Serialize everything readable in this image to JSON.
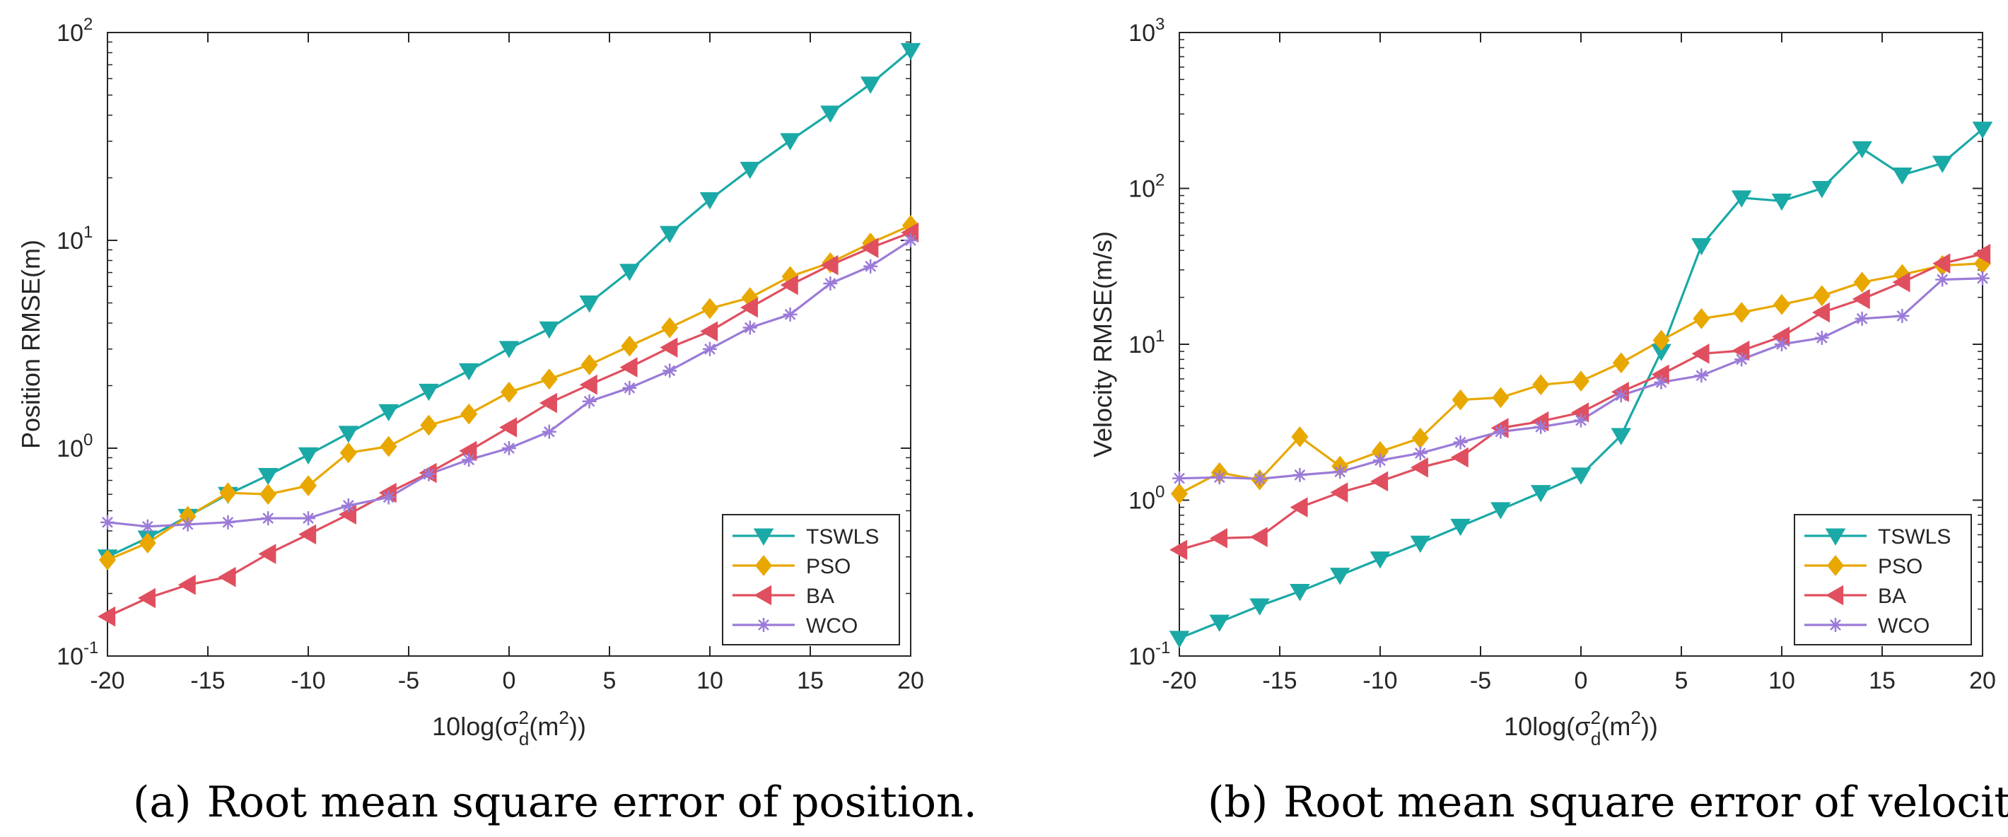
{
  "colors": {
    "TSWLS": "#1aa9a6",
    "PSO": "#e8a800",
    "BA": "#e04f5f",
    "WCO": "#9b7bd8"
  },
  "chart_data": [
    {
      "type": "line",
      "yscale": "log",
      "title": "",
      "xlabel_prefix": "10log(σ",
      "xlabel_sub": "d",
      "xlabel_sup": "2",
      "xlabel_mid": "(m",
      "xlabel_sup2": "2",
      "xlabel_suffix": "))",
      "ylabel": "Position RMSE(m)",
      "xlim": [
        -20,
        20
      ],
      "ylim": [
        0.1,
        100
      ],
      "xticks": [
        "-20",
        "-15",
        "-10",
        "-5",
        "0",
        "5",
        "10",
        "15",
        "20"
      ],
      "ytick_base": "10",
      "yticks": [
        {
          "exp": "-1",
          "value": 0.1
        },
        {
          "exp": "0",
          "value": 1
        },
        {
          "exp": "1",
          "value": 10
        },
        {
          "exp": "2",
          "value": 100
        }
      ],
      "legend_location": "bottom-right",
      "x": [
        -20,
        -18,
        -16,
        -14,
        -12,
        -10,
        -8,
        -6,
        -4,
        -2,
        0,
        2,
        4,
        6,
        8,
        10,
        12,
        14,
        16,
        18,
        20
      ],
      "series": [
        {
          "name": "TSWLS",
          "marker": "triangle-down",
          "values": [
            0.3,
            0.37,
            0.47,
            0.6,
            0.74,
            0.93,
            1.18,
            1.5,
            1.88,
            2.36,
            3.02,
            3.75,
            5.0,
            7.1,
            10.8,
            15.7,
            22.0,
            30.2,
            41.0,
            56.5,
            82.0
          ]
        },
        {
          "name": "PSO",
          "marker": "diamond",
          "values": [
            0.29,
            0.35,
            0.47,
            0.61,
            0.6,
            0.66,
            0.95,
            1.02,
            1.29,
            1.46,
            1.86,
            2.15,
            2.52,
            3.1,
            3.8,
            4.7,
            5.3,
            6.7,
            7.8,
            9.7,
            11.8
          ]
        },
        {
          "name": "BA",
          "marker": "triangle-left",
          "values": [
            0.155,
            0.19,
            0.22,
            0.24,
            0.31,
            0.385,
            0.48,
            0.61,
            0.76,
            0.97,
            1.26,
            1.65,
            2.02,
            2.45,
            3.05,
            3.65,
            4.75,
            6.1,
            7.6,
            9.2,
            10.9
          ]
        },
        {
          "name": "WCO",
          "marker": "asterisk",
          "values": [
            0.44,
            0.42,
            0.43,
            0.44,
            0.46,
            0.46,
            0.53,
            0.58,
            0.75,
            0.88,
            1.0,
            1.2,
            1.68,
            1.95,
            2.36,
            3.0,
            3.8,
            4.4,
            6.2,
            7.5,
            10.0
          ]
        }
      ]
    },
    {
      "type": "line",
      "yscale": "log",
      "title": "",
      "xlabel_prefix": "10log(σ",
      "xlabel_sub": "d",
      "xlabel_sup": "2",
      "xlabel_mid": "(m",
      "xlabel_sup2": "2",
      "xlabel_suffix": "))",
      "ylabel": "Velocity RMSE(m/s)",
      "xlim": [
        -20,
        20
      ],
      "ylim": [
        0.1,
        1000
      ],
      "xticks": [
        "-20",
        "-15",
        "-10",
        "-5",
        "0",
        "5",
        "10",
        "15",
        "20"
      ],
      "ytick_base": "10",
      "yticks": [
        {
          "exp": "-1",
          "value": 0.1
        },
        {
          "exp": "0",
          "value": 1
        },
        {
          "exp": "1",
          "value": 10
        },
        {
          "exp": "2",
          "value": 100
        },
        {
          "exp": "3",
          "value": 1000
        }
      ],
      "legend_location": "bottom-right",
      "x": [
        -20,
        -18,
        -16,
        -14,
        -12,
        -10,
        -8,
        -6,
        -4,
        -2,
        0,
        2,
        4,
        6,
        8,
        10,
        12,
        14,
        16,
        18,
        20
      ],
      "series": [
        {
          "name": "TSWLS",
          "marker": "triangle-down",
          "values": [
            0.13,
            0.165,
            0.21,
            0.26,
            0.33,
            0.42,
            0.53,
            0.68,
            0.87,
            1.12,
            1.45,
            2.6,
            9.0,
            43.0,
            87.0,
            83.0,
            100.0,
            180.0,
            122.0,
            145.0,
            240.0
          ]
        },
        {
          "name": "PSO",
          "marker": "diamond",
          "values": [
            1.1,
            1.5,
            1.35,
            2.55,
            1.65,
            2.05,
            2.5,
            4.4,
            4.55,
            5.5,
            5.8,
            7.6,
            10.6,
            14.6,
            16.0,
            18.0,
            20.5,
            25.0,
            28.0,
            32.0,
            33.0
          ]
        },
        {
          "name": "BA",
          "marker": "triangle-left",
          "values": [
            0.48,
            0.57,
            0.58,
            0.9,
            1.12,
            1.32,
            1.62,
            1.88,
            2.9,
            3.2,
            3.65,
            4.95,
            6.4,
            8.7,
            9.1,
            11.2,
            16.0,
            19.5,
            25.0,
            33.0,
            38.0
          ]
        },
        {
          "name": "WCO",
          "marker": "asterisk",
          "values": [
            1.38,
            1.4,
            1.37,
            1.45,
            1.52,
            1.8,
            2.0,
            2.35,
            2.75,
            2.95,
            3.25,
            4.7,
            5.7,
            6.3,
            8.0,
            10.0,
            11.0,
            14.6,
            15.2,
            26.0,
            26.5
          ]
        }
      ]
    }
  ],
  "captions": [
    {
      "tag": "(a)",
      "text": "Root mean square error of position."
    },
    {
      "tag": "(b)",
      "text": "Root mean square error of velocity."
    }
  ]
}
